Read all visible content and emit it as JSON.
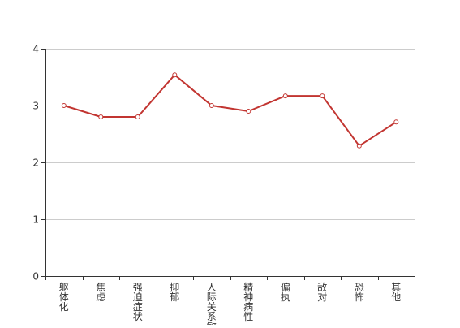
{
  "chart_data": {
    "type": "line",
    "categories": [
      "躯体化",
      "焦虑",
      "强迫症状",
      "抑郁",
      "人际关系敏感",
      "精神病性",
      "偏执",
      "敌对",
      "恐怖",
      "其他"
    ],
    "series": [
      {
        "values": [
          3.0,
          2.8,
          2.8,
          3.54,
          3.0,
          2.9,
          3.17,
          3.17,
          2.29,
          2.71
        ]
      }
    ],
    "ylim": [
      0,
      4
    ],
    "yticks": [
      0,
      1,
      2,
      3,
      4
    ],
    "grid": true,
    "colors": {
      "line": "#c23531",
      "marker_fill": "#ffffff",
      "grid": "#cccccc",
      "axis": "#333333"
    }
  }
}
